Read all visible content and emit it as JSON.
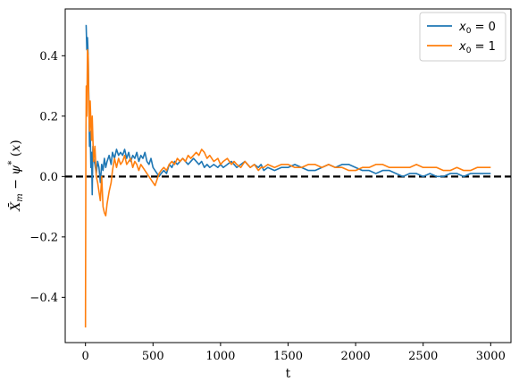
{
  "chart_data": {
    "type": "line",
    "xlabel": "t",
    "ylabel": "X̄_m − ψ*(x)",
    "xlim": [
      -150,
      3150
    ],
    "ylim": [
      -0.55,
      0.555
    ],
    "xticks": [
      0,
      500,
      1000,
      1500,
      2000,
      2500,
      3000
    ],
    "xtick_labels": [
      "0",
      "500",
      "1000",
      "1500",
      "2000",
      "2500",
      "3000"
    ],
    "yticks": [
      -0.4,
      -0.2,
      0.0,
      0.2,
      0.4
    ],
    "ytick_labels": [
      "−0.4",
      "−0.2",
      "0.0",
      "0.2",
      "0.4"
    ],
    "reference_line": {
      "y": 0,
      "style": "dashed",
      "color": "#000000"
    },
    "legend": {
      "position": "top-right",
      "frame": true
    },
    "series": [
      {
        "name": "x₀ = 0",
        "legend_prefix": "x",
        "legend_sub": "0",
        "legend_value": "= 0",
        "color": "#1f77b4",
        "x": [
          0,
          5,
          10,
          15,
          20,
          25,
          30,
          35,
          40,
          45,
          50,
          55,
          60,
          70,
          80,
          90,
          100,
          110,
          120,
          130,
          140,
          150,
          160,
          175,
          190,
          200,
          215,
          230,
          245,
          260,
          275,
          290,
          305,
          320,
          335,
          350,
          365,
          380,
          395,
          410,
          425,
          440,
          455,
          470,
          485,
          500,
          515,
          530,
          545,
          560,
          580,
          600,
          620,
          640,
          660,
          680,
          700,
          720,
          740,
          760,
          780,
          800,
          820,
          840,
          860,
          880,
          900,
          920,
          950,
          980,
          1000,
          1020,
          1050,
          1080,
          1100,
          1120,
          1150,
          1180,
          1200,
          1220,
          1250,
          1280,
          1300,
          1320,
          1350,
          1400,
          1450,
          1500,
          1550,
          1600,
          1650,
          1700,
          1750,
          1800,
          1850,
          1900,
          1950,
          2000,
          2050,
          2100,
          2150,
          2200,
          2250,
          2300,
          2350,
          2400,
          2450,
          2500,
          2550,
          2600,
          2650,
          2700,
          2750,
          2800,
          2850,
          2900,
          2950,
          3000
        ],
        "y": [
          0.5,
          0.5,
          0.42,
          0.46,
          0.4,
          0.25,
          0.1,
          0.15,
          0.03,
          0.08,
          -0.06,
          0.1,
          0.06,
          0.04,
          0.01,
          0.05,
          0.03,
          -0.02,
          0.04,
          0.02,
          0.06,
          0.03,
          0.05,
          0.07,
          0.04,
          0.08,
          0.06,
          0.09,
          0.07,
          0.08,
          0.07,
          0.09,
          0.06,
          0.08,
          0.05,
          0.07,
          0.06,
          0.08,
          0.05,
          0.07,
          0.06,
          0.08,
          0.05,
          0.04,
          0.06,
          0.03,
          0.02,
          0.01,
          0.0,
          0.01,
          0.02,
          0.01,
          0.04,
          0.03,
          0.05,
          0.04,
          0.05,
          0.06,
          0.05,
          0.04,
          0.05,
          0.06,
          0.05,
          0.04,
          0.05,
          0.03,
          0.04,
          0.03,
          0.04,
          0.03,
          0.04,
          0.03,
          0.04,
          0.05,
          0.04,
          0.03,
          0.04,
          0.05,
          0.04,
          0.03,
          0.04,
          0.03,
          0.04,
          0.02,
          0.03,
          0.02,
          0.03,
          0.03,
          0.04,
          0.03,
          0.02,
          0.02,
          0.03,
          0.04,
          0.03,
          0.04,
          0.04,
          0.03,
          0.02,
          0.02,
          0.01,
          0.02,
          0.02,
          0.01,
          0.0,
          0.01,
          0.01,
          0.0,
          0.01,
          0.0,
          0.0,
          0.01,
          0.01,
          0.0,
          0.01,
          0.01,
          0.01,
          0.01
        ]
      },
      {
        "name": "x₀ = 1",
        "legend_prefix": "x",
        "legend_sub": "0",
        "legend_value": "= 1",
        "color": "#ff7f0e",
        "x": [
          0,
          3,
          6,
          10,
          15,
          20,
          25,
          30,
          35,
          40,
          45,
          50,
          60,
          70,
          80,
          90,
          100,
          110,
          120,
          130,
          140,
          150,
          160,
          175,
          190,
          200,
          215,
          230,
          245,
          260,
          275,
          290,
          305,
          320,
          335,
          350,
          365,
          380,
          395,
          410,
          425,
          440,
          455,
          470,
          485,
          500,
          515,
          530,
          545,
          560,
          580,
          600,
          620,
          640,
          660,
          680,
          700,
          720,
          740,
          760,
          780,
          800,
          820,
          840,
          860,
          880,
          900,
          920,
          950,
          980,
          1000,
          1020,
          1050,
          1080,
          1100,
          1120,
          1150,
          1180,
          1200,
          1220,
          1250,
          1280,
          1300,
          1320,
          1350,
          1400,
          1450,
          1500,
          1550,
          1600,
          1650,
          1700,
          1750,
          1800,
          1850,
          1900,
          1950,
          2000,
          2050,
          2100,
          2150,
          2200,
          2250,
          2300,
          2350,
          2400,
          2450,
          2500,
          2550,
          2600,
          2650,
          2700,
          2750,
          2800,
          2850,
          2900,
          2950,
          3000
        ],
        "y": [
          -0.5,
          0.1,
          0.3,
          0.2,
          0.42,
          0.4,
          0.22,
          0.15,
          0.25,
          0.18,
          0.12,
          0.2,
          0.05,
          0.1,
          0.0,
          -0.02,
          -0.05,
          -0.08,
          0.0,
          -0.1,
          -0.12,
          -0.13,
          -0.09,
          -0.05,
          -0.02,
          0.02,
          0.06,
          0.03,
          0.06,
          0.04,
          0.05,
          0.07,
          0.04,
          0.05,
          0.06,
          0.03,
          0.05,
          0.04,
          0.02,
          0.04,
          0.03,
          0.02,
          0.01,
          0.0,
          -0.01,
          -0.02,
          -0.03,
          -0.01,
          0.01,
          0.02,
          0.03,
          0.02,
          0.04,
          0.05,
          0.04,
          0.06,
          0.05,
          0.06,
          0.05,
          0.07,
          0.06,
          0.07,
          0.08,
          0.07,
          0.09,
          0.08,
          0.06,
          0.07,
          0.05,
          0.06,
          0.04,
          0.05,
          0.06,
          0.04,
          0.05,
          0.04,
          0.03,
          0.05,
          0.04,
          0.03,
          0.04,
          0.02,
          0.03,
          0.03,
          0.04,
          0.03,
          0.04,
          0.04,
          0.03,
          0.03,
          0.04,
          0.04,
          0.03,
          0.04,
          0.03,
          0.03,
          0.02,
          0.02,
          0.03,
          0.03,
          0.04,
          0.04,
          0.03,
          0.03,
          0.03,
          0.03,
          0.04,
          0.03,
          0.03,
          0.03,
          0.02,
          0.02,
          0.03,
          0.02,
          0.02,
          0.03,
          0.03,
          0.03
        ]
      }
    ]
  }
}
